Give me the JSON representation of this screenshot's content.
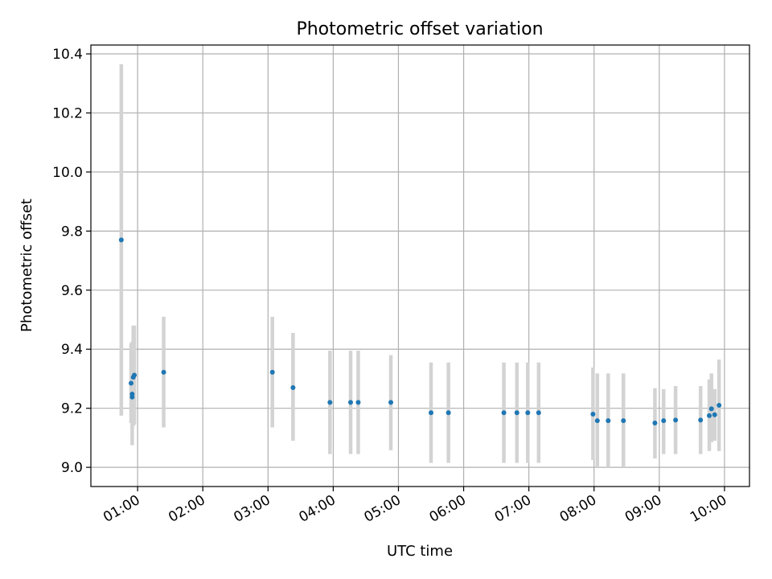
{
  "chart_data": {
    "type": "scatter",
    "title": "Photometric offset variation",
    "xlabel": "UTC time",
    "ylabel": "Photometric offset",
    "xlim": [
      "00:17",
      "10:23"
    ],
    "ylim": [
      8.935,
      10.43
    ],
    "grid": true,
    "colors": {
      "points": "#1f77b4",
      "error_bars": "#d3d3d3",
      "grid": "#b0b0b0"
    },
    "x_ticks": [
      "01:00",
      "02:00",
      "03:00",
      "04:00",
      "05:00",
      "06:00",
      "07:00",
      "08:00",
      "09:00",
      "10:00"
    ],
    "y_ticks": [
      "9.0",
      "9.2",
      "9.4",
      "9.6",
      "9.8",
      "10.0",
      "10.2",
      "10.4"
    ],
    "points": [
      {
        "x": "00:45",
        "y": 9.77,
        "lo": 9.175,
        "hi": 10.365
      },
      {
        "x": "00:54",
        "y": 9.285,
        "lo": 9.15,
        "hi": 9.42
      },
      {
        "x": "00:55",
        "y": 9.248,
        "lo": 9.155,
        "hi": 9.425
      },
      {
        "x": "00:55",
        "y": 9.238,
        "lo": 9.075,
        "hi": 9.4
      },
      {
        "x": "00:56",
        "y": 9.305,
        "lo": 9.14,
        "hi": 9.48
      },
      {
        "x": "00:57",
        "y": 9.312,
        "lo": 9.145,
        "hi": 9.48
      },
      {
        "x": "01:24",
        "y": 9.322,
        "lo": 9.135,
        "hi": 9.51
      },
      {
        "x": "03:04",
        "y": 9.322,
        "lo": 9.135,
        "hi": 9.51
      },
      {
        "x": "03:23",
        "y": 9.27,
        "lo": 9.09,
        "hi": 9.455
      },
      {
        "x": "03:57",
        "y": 9.22,
        "lo": 9.045,
        "hi": 9.395
      },
      {
        "x": "04:16",
        "y": 9.22,
        "lo": 9.045,
        "hi": 9.395
      },
      {
        "x": "04:23",
        "y": 9.22,
        "lo": 9.045,
        "hi": 9.395
      },
      {
        "x": "04:53",
        "y": 9.22,
        "lo": 9.058,
        "hi": 9.38
      },
      {
        "x": "05:30",
        "y": 9.185,
        "lo": 9.015,
        "hi": 9.355
      },
      {
        "x": "05:46",
        "y": 9.185,
        "lo": 9.015,
        "hi": 9.355
      },
      {
        "x": "06:37",
        "y": 9.185,
        "lo": 9.015,
        "hi": 9.355
      },
      {
        "x": "06:49",
        "y": 9.185,
        "lo": 9.015,
        "hi": 9.355
      },
      {
        "x": "06:59",
        "y": 9.185,
        "lo": 9.015,
        "hi": 9.355
      },
      {
        "x": "07:09",
        "y": 9.185,
        "lo": 9.015,
        "hi": 9.355
      },
      {
        "x": "07:59",
        "y": 9.18,
        "lo": 9.025,
        "hi": 9.338
      },
      {
        "x": "08:03",
        "y": 9.158,
        "lo": 9.0,
        "hi": 9.318
      },
      {
        "x": "08:13",
        "y": 9.158,
        "lo": 9.0,
        "hi": 9.318
      },
      {
        "x": "08:27",
        "y": 9.158,
        "lo": 9.0,
        "hi": 9.318
      },
      {
        "x": "08:56",
        "y": 9.15,
        "lo": 9.03,
        "hi": 9.268
      },
      {
        "x": "09:04",
        "y": 9.158,
        "lo": 9.045,
        "hi": 9.265
      },
      {
        "x": "09:15",
        "y": 9.16,
        "lo": 9.045,
        "hi": 9.275
      },
      {
        "x": "09:38",
        "y": 9.16,
        "lo": 9.045,
        "hi": 9.275
      },
      {
        "x": "09:46",
        "y": 9.175,
        "lo": 9.055,
        "hi": 9.298
      },
      {
        "x": "09:48",
        "y": 9.198,
        "lo": 9.085,
        "hi": 9.318
      },
      {
        "x": "09:51",
        "y": 9.178,
        "lo": 9.09,
        "hi": 9.265
      },
      {
        "x": "09:55",
        "y": 9.21,
        "lo": 9.055,
        "hi": 9.365
      }
    ]
  }
}
